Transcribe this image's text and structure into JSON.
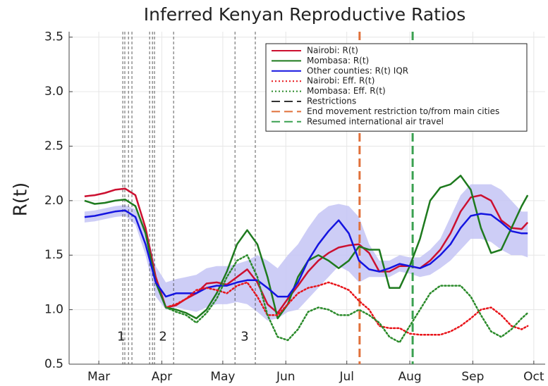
{
  "chart_data": {
    "type": "line",
    "title": "Inferred Kenyan Reproductive Ratios",
    "y_label": "R(t)",
    "x": [
      54,
      59,
      64,
      69,
      74,
      79,
      84,
      89,
      94,
      99,
      104,
      109,
      114,
      119,
      124,
      129,
      134,
      139,
      144,
      149,
      154,
      159,
      164,
      169,
      174,
      179,
      184,
      189,
      194,
      199,
      204,
      209,
      214,
      219,
      224,
      229,
      234,
      239,
      244,
      249,
      254,
      259,
      264,
      269,
      272
    ],
    "xlim": [
      46.4,
      280.6
    ],
    "xticks": [
      {
        "value": 61,
        "label": "Mar"
      },
      {
        "value": 92,
        "label": "Apr"
      },
      {
        "value": 122,
        "label": "May"
      },
      {
        "value": 153,
        "label": "Jun"
      },
      {
        "value": 183,
        "label": "Jul"
      },
      {
        "value": 214,
        "label": "Aug"
      },
      {
        "value": 245,
        "label": "Sep"
      },
      {
        "value": 275,
        "label": "Oct"
      }
    ],
    "ylim": [
      0.5,
      3.55
    ],
    "yticks": [
      0.5,
      {
        "value": 1.0,
        "label": "1.0"
      },
      1.5,
      {
        "value": 2.0,
        "label": "2.0"
      },
      2.5,
      {
        "value": 3.0,
        "label": "3.0"
      },
      3.5
    ],
    "grid": true,
    "legend": "top-right",
    "series": [
      {
        "name": "Nairobi: R(t)",
        "color": "#cc1030",
        "line_style": "solid",
        "values": [
          2.04,
          2.05,
          2.07,
          2.1,
          2.11,
          2.05,
          1.75,
          1.3,
          1.02,
          1.04,
          1.1,
          1.15,
          1.24,
          1.25,
          1.23,
          1.3,
          1.37,
          1.25,
          1.05,
          0.97,
          1.1,
          1.22,
          1.35,
          1.45,
          1.52,
          1.57,
          1.59,
          1.6,
          1.52,
          1.35,
          1.35,
          1.4,
          1.4,
          1.38,
          1.45,
          1.55,
          1.7,
          1.9,
          2.03,
          2.05,
          2.0,
          1.82,
          1.75,
          1.74,
          1.8
        ]
      },
      {
        "name": "Mombasa: R(t)",
        "color": "#1e7a1e",
        "line_style": "solid",
        "values": [
          2.0,
          1.97,
          1.98,
          2.0,
          2.01,
          1.95,
          1.7,
          1.25,
          1.02,
          1.0,
          0.97,
          0.92,
          1.0,
          1.15,
          1.35,
          1.6,
          1.73,
          1.6,
          1.3,
          0.92,
          1.05,
          1.3,
          1.45,
          1.5,
          1.45,
          1.38,
          1.45,
          1.58,
          1.55,
          1.55,
          1.2,
          1.2,
          1.4,
          1.65,
          2.0,
          2.12,
          2.15,
          2.23,
          2.1,
          1.75,
          1.52,
          1.55,
          1.75,
          1.95,
          2.05
        ]
      },
      {
        "name": "Other counties: R(t) IQR",
        "color": "#1414e0",
        "band_color": "#c4c4f4",
        "line_style": "solid",
        "values": [
          1.85,
          1.86,
          1.88,
          1.9,
          1.91,
          1.85,
          1.6,
          1.25,
          1.12,
          1.15,
          1.15,
          1.15,
          1.2,
          1.22,
          1.22,
          1.25,
          1.27,
          1.27,
          1.2,
          1.12,
          1.12,
          1.25,
          1.45,
          1.6,
          1.72,
          1.82,
          1.7,
          1.45,
          1.37,
          1.35,
          1.38,
          1.42,
          1.4,
          1.38,
          1.42,
          1.5,
          1.6,
          1.75,
          1.86,
          1.88,
          1.87,
          1.8,
          1.72,
          1.7,
          1.7
        ],
        "low": [
          1.8,
          1.81,
          1.83,
          1.85,
          1.86,
          1.78,
          1.5,
          1.12,
          1.0,
          1.02,
          1.0,
          0.98,
          1.02,
          1.05,
          1.05,
          1.07,
          1.05,
          0.98,
          0.9,
          0.92,
          0.98,
          1.0,
          1.1,
          1.2,
          1.3,
          1.4,
          1.35,
          1.25,
          1.3,
          1.3,
          1.3,
          1.35,
          1.33,
          1.3,
          1.32,
          1.38,
          1.45,
          1.55,
          1.65,
          1.65,
          1.62,
          1.55,
          1.5,
          1.5,
          1.48
        ],
        "high": [
          1.9,
          1.91,
          1.93,
          1.95,
          1.96,
          1.92,
          1.75,
          1.4,
          1.25,
          1.28,
          1.3,
          1.32,
          1.38,
          1.4,
          1.4,
          1.42,
          1.45,
          1.5,
          1.45,
          1.38,
          1.5,
          1.6,
          1.75,
          1.88,
          1.95,
          1.97,
          1.95,
          1.85,
          1.6,
          1.45,
          1.45,
          1.5,
          1.48,
          1.48,
          1.55,
          1.65,
          1.85,
          2.05,
          2.15,
          2.15,
          2.15,
          2.1,
          2.0,
          1.9,
          1.9
        ]
      },
      {
        "name": "Nairobi: Eff. R(t)",
        "color": "#e8141a",
        "line_style": "dotted",
        "values": [
          null,
          null,
          null,
          null,
          null,
          null,
          null,
          null,
          1.02,
          1.05,
          1.1,
          1.18,
          1.2,
          1.18,
          1.15,
          1.22,
          1.25,
          1.12,
          0.95,
          0.95,
          1.05,
          1.15,
          1.2,
          1.22,
          1.25,
          1.22,
          1.18,
          1.08,
          1.0,
          0.85,
          0.83,
          0.83,
          0.78,
          0.77,
          0.77,
          0.77,
          0.8,
          0.85,
          0.92,
          1.0,
          1.02,
          0.95,
          0.85,
          0.82,
          0.85
        ]
      },
      {
        "name": "Mombasa: Eff. R(t)",
        "color": "#2a8a2a",
        "line_style": "dotted",
        "values": [
          null,
          null,
          null,
          null,
          null,
          null,
          null,
          null,
          1.02,
          0.98,
          0.95,
          0.88,
          0.97,
          1.1,
          1.3,
          1.45,
          1.5,
          1.3,
          0.95,
          0.75,
          0.72,
          0.82,
          0.98,
          1.02,
          1.0,
          0.95,
          0.95,
          1.0,
          0.95,
          0.88,
          0.75,
          0.7,
          0.85,
          1.0,
          1.15,
          1.22,
          1.22,
          1.22,
          1.12,
          0.95,
          0.8,
          0.75,
          0.82,
          0.92,
          0.97
        ]
      }
    ],
    "events": [
      {
        "name": "Restrictions",
        "color": "#333333",
        "x": [
          72.8,
          73.8,
          75.6,
          77.3,
          86,
          87.4,
          88.4,
          97.8,
          128,
          138
        ]
      },
      {
        "name": "End movement restriction to/from main cities",
        "color": "#e0703a",
        "x": [
          189.3
        ]
      },
      {
        "name": "Resumed international air travel",
        "color": "#3aa050",
        "x": [
          215.4
        ]
      }
    ],
    "annotations": [
      {
        "text": "1",
        "x": 72,
        "y": 0.75
      },
      {
        "text": "2",
        "x": 92.6,
        "y": 0.75
      },
      {
        "text": "3",
        "x": 132.8,
        "y": 0.75
      }
    ]
  }
}
